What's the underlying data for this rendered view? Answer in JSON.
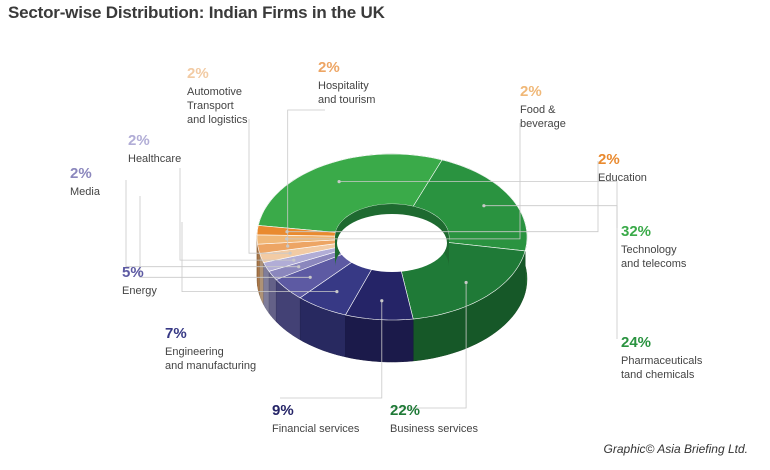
{
  "chart_data": {
    "type": "pie",
    "variant": "3d-donut",
    "title": "Sector-wise Distribution: Indian Firms in the UK",
    "unit": "%",
    "slices": [
      {
        "label": "Technology\nand telecoms",
        "value": 32,
        "pct_label": "32%",
        "color": "#3aaa49"
      },
      {
        "label": "Pharmaceuticals\ntand chemicals",
        "value": 24,
        "pct_label": "24%",
        "color": "#2a9340"
      },
      {
        "label": "Business services",
        "value": 22,
        "pct_label": "22%",
        "color": "#1f7a37"
      },
      {
        "label": "Financial services",
        "value": 9,
        "pct_label": "9%",
        "color": "#252467"
      },
      {
        "label": "Engineering\nand manufacturing",
        "value": 7,
        "pct_label": "7%",
        "color": "#373985"
      },
      {
        "label": "Energy",
        "value": 5,
        "pct_label": "5%",
        "color": "#5d5aa3"
      },
      {
        "label": "Media",
        "value": 2,
        "pct_label": "2%",
        "color": "#8b87bd"
      },
      {
        "label": "Healthcare",
        "value": 2,
        "pct_label": "2%",
        "color": "#b1add6"
      },
      {
        "label": "Automotive\nTransport\nand logistics",
        "value": 2,
        "pct_label": "2%",
        "color": "#f2cba4"
      },
      {
        "label": "Hospitality\nand tourism",
        "value": 2,
        "pct_label": "2%",
        "color": "#eda564"
      },
      {
        "label": "Food &\nbeverage",
        "value": 2,
        "pct_label": "2%",
        "color": "#f0b878"
      },
      {
        "label": "Education",
        "value": 2,
        "pct_label": "2%",
        "color": "#e98a2f"
      }
    ]
  },
  "credit": "Graphic© Asia Briefing Ltd."
}
